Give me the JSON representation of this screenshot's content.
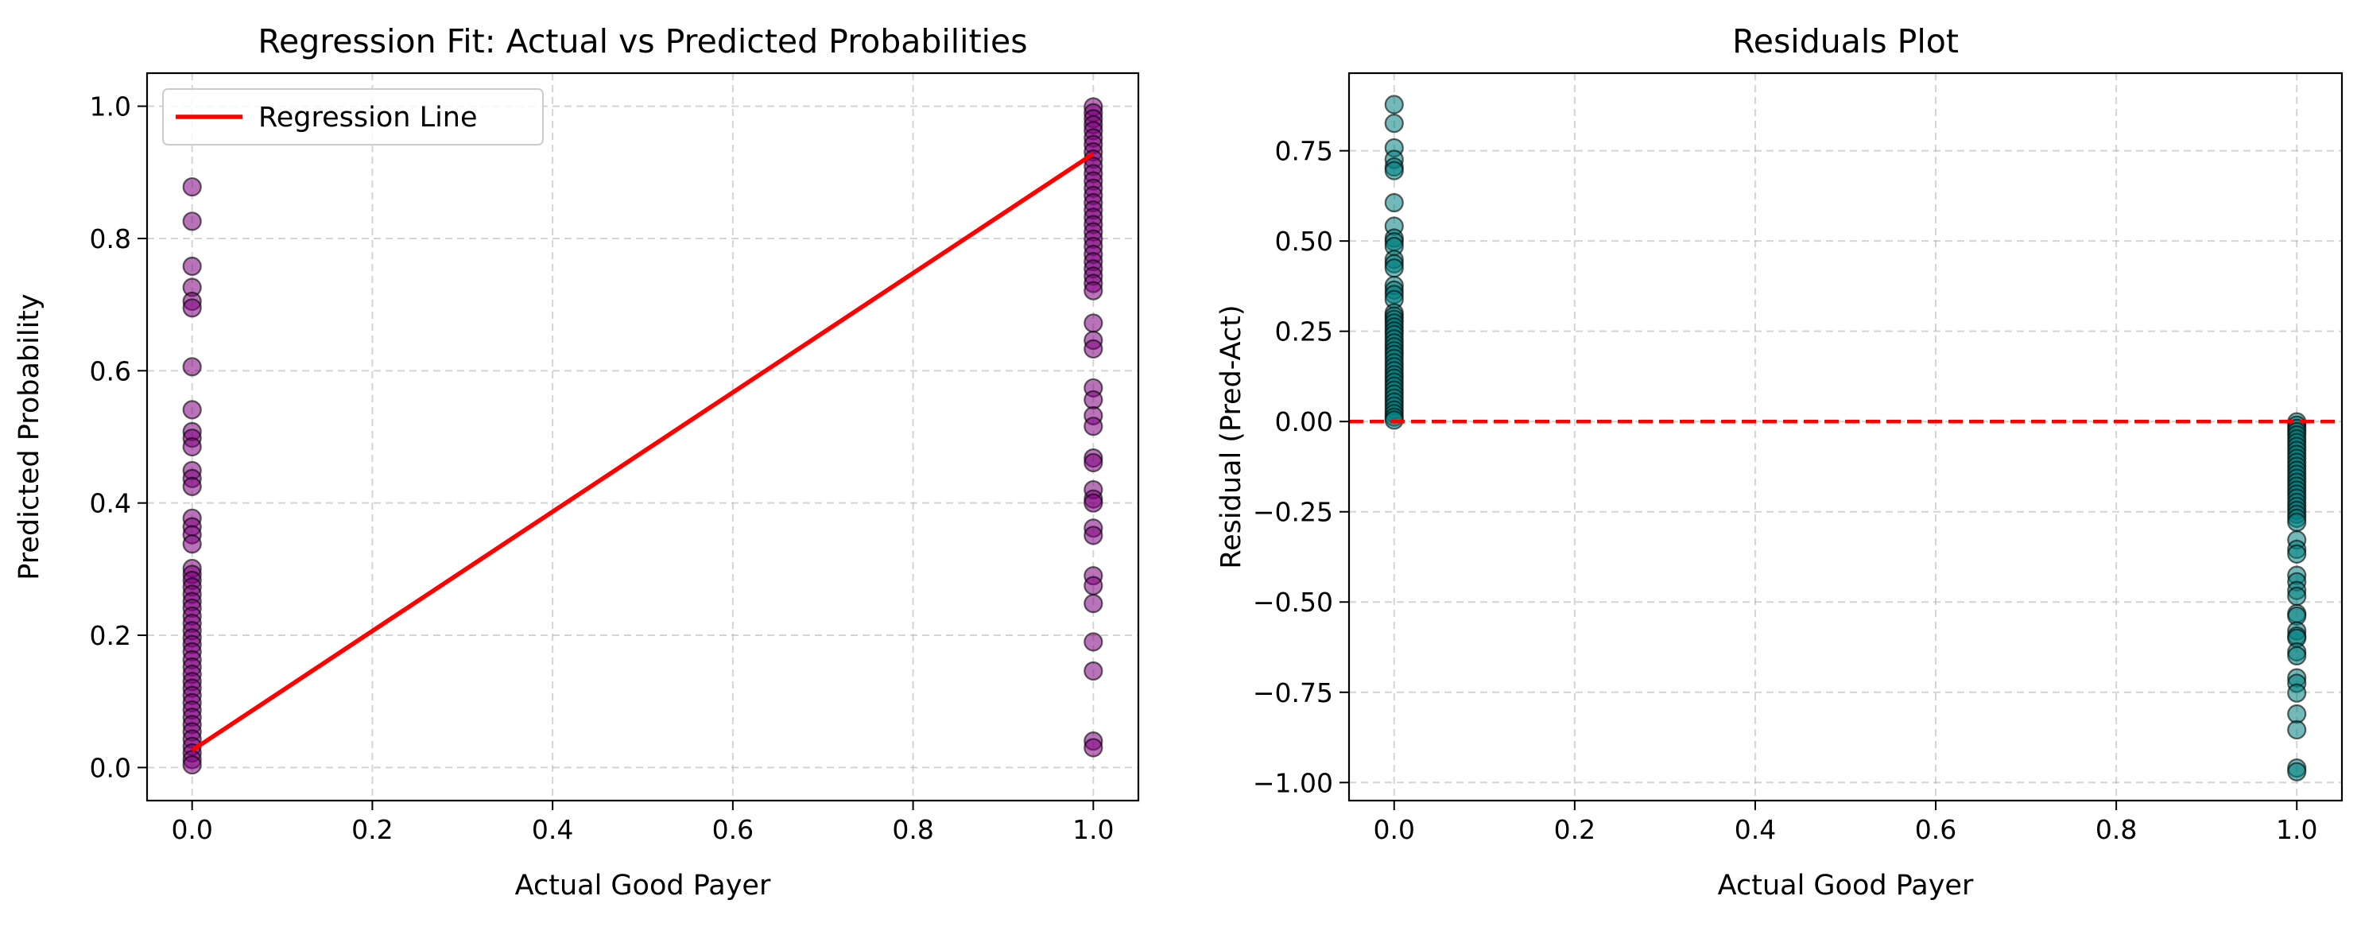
{
  "chart_data": [
    {
      "type": "scatter",
      "title": "Regression Fit: Actual vs Predicted Probabilities",
      "xlabel": "Actual Good Payer",
      "ylabel": "Predicted Probability",
      "xlim": [
        -0.05,
        1.05
      ],
      "ylim": [
        -0.05,
        1.05
      ],
      "xticks": [
        0.0,
        0.2,
        0.4,
        0.6,
        0.8,
        1.0
      ],
      "yticks": [
        0.0,
        0.2,
        0.4,
        0.6,
        0.8,
        1.0
      ],
      "xtick_labels": [
        "0.0",
        "0.2",
        "0.4",
        "0.6",
        "0.8",
        "1.0"
      ],
      "ytick_labels": [
        "0.0",
        "0.2",
        "0.4",
        "0.6",
        "0.8",
        "1.0"
      ],
      "grid": true,
      "legend": {
        "placement": "top-left",
        "entries": [
          "Regression Line"
        ]
      },
      "series": [
        {
          "kind": "scatter",
          "color": "#800080",
          "points": [
            [
              0,
              0.878
            ],
            [
              0,
              0.826
            ],
            [
              0,
              0.758
            ],
            [
              0,
              0.726
            ],
            [
              0,
              0.705
            ],
            [
              0,
              0.695
            ],
            [
              0,
              0.606
            ],
            [
              0,
              0.541
            ],
            [
              0,
              0.508
            ],
            [
              0,
              0.498
            ],
            [
              0,
              0.485
            ],
            [
              0,
              0.449
            ],
            [
              0,
              0.437
            ],
            [
              0,
              0.425
            ],
            [
              0,
              0.377
            ],
            [
              0,
              0.364
            ],
            [
              0,
              0.352
            ],
            [
              0,
              0.338
            ],
            [
              0,
              0.301
            ],
            [
              0,
              0.292
            ],
            [
              0,
              0.283
            ],
            [
              0,
              0.273
            ],
            [
              0,
              0.262
            ],
            [
              0,
              0.251
            ],
            [
              0,
              0.241
            ],
            [
              0,
              0.229
            ],
            [
              0,
              0.218
            ],
            [
              0,
              0.207
            ],
            [
              0,
              0.196
            ],
            [
              0,
              0.186
            ],
            [
              0,
              0.175
            ],
            [
              0,
              0.163
            ],
            [
              0,
              0.152
            ],
            [
              0,
              0.141
            ],
            [
              0,
              0.13
            ],
            [
              0,
              0.12
            ],
            [
              0,
              0.109
            ],
            [
              0,
              0.098
            ],
            [
              0,
              0.087
            ],
            [
              0,
              0.076
            ],
            [
              0,
              0.065
            ],
            [
              0,
              0.054
            ],
            [
              0,
              0.043
            ],
            [
              0,
              0.032
            ],
            [
              0,
              0.022
            ],
            [
              0,
              0.012
            ],
            [
              0,
              0.004
            ],
            [
              1,
              0.999
            ],
            [
              1,
              0.99
            ],
            [
              1,
              0.981
            ],
            [
              1,
              0.972
            ],
            [
              1,
              0.963
            ],
            [
              1,
              0.952
            ],
            [
              1,
              0.942
            ],
            [
              1,
              0.931
            ],
            [
              1,
              0.92
            ],
            [
              1,
              0.909
            ],
            [
              1,
              0.898
            ],
            [
              1,
              0.887
            ],
            [
              1,
              0.876
            ],
            [
              1,
              0.865
            ],
            [
              1,
              0.854
            ],
            [
              1,
              0.843
            ],
            [
              1,
              0.832
            ],
            [
              1,
              0.821
            ],
            [
              1,
              0.81
            ],
            [
              1,
              0.799
            ],
            [
              1,
              0.788
            ],
            [
              1,
              0.776
            ],
            [
              1,
              0.765
            ],
            [
              1,
              0.754
            ],
            [
              1,
              0.743
            ],
            [
              1,
              0.732
            ],
            [
              1,
              0.721
            ],
            [
              1,
              0.672
            ],
            [
              1,
              0.646
            ],
            [
              1,
              0.633
            ],
            [
              1,
              0.574
            ],
            [
              1,
              0.556
            ],
            [
              1,
              0.532
            ],
            [
              1,
              0.516
            ],
            [
              1,
              0.468
            ],
            [
              1,
              0.461
            ],
            [
              1,
              0.42
            ],
            [
              1,
              0.406
            ],
            [
              1,
              0.4
            ],
            [
              1,
              0.362
            ],
            [
              1,
              0.351
            ],
            [
              1,
              0.29
            ],
            [
              1,
              0.275
            ],
            [
              1,
              0.248
            ],
            [
              1,
              0.19
            ],
            [
              1,
              0.146
            ],
            [
              1,
              0.04
            ],
            [
              1,
              0.03
            ]
          ]
        },
        {
          "kind": "line",
          "name": "Regression Line",
          "color": "#ff0000",
          "points": [
            [
              0,
              0.026
            ],
            [
              1,
              0.928
            ]
          ]
        }
      ]
    },
    {
      "type": "scatter",
      "title": "Residuals Plot",
      "xlabel": "Actual Good Payer",
      "ylabel": "Residual (Pred-Act)",
      "xlim": [
        -0.05,
        1.05
      ],
      "ylim": [
        -1.05,
        0.965
      ],
      "xticks": [
        0.0,
        0.2,
        0.4,
        0.6,
        0.8,
        1.0
      ],
      "yticks": [
        0.75,
        0.5,
        0.25,
        0.0,
        -0.25,
        -0.5,
        -0.75,
        -1.0
      ],
      "xtick_labels": [
        "0.0",
        "0.2",
        "0.4",
        "0.6",
        "0.8",
        "1.0"
      ],
      "ytick_labels": [
        "0.75",
        "0.50",
        "0.25",
        "0.00",
        "−0.25",
        "−0.50",
        "−0.75",
        "−1.00"
      ],
      "grid": true,
      "series": [
        {
          "kind": "scatter",
          "color": "#008080",
          "points": [
            [
              0,
              0.878
            ],
            [
              0,
              0.826
            ],
            [
              0,
              0.758
            ],
            [
              0,
              0.726
            ],
            [
              0,
              0.705
            ],
            [
              0,
              0.695
            ],
            [
              0,
              0.606
            ],
            [
              0,
              0.541
            ],
            [
              0,
              0.508
            ],
            [
              0,
              0.498
            ],
            [
              0,
              0.485
            ],
            [
              0,
              0.449
            ],
            [
              0,
              0.437
            ],
            [
              0,
              0.425
            ],
            [
              0,
              0.377
            ],
            [
              0,
              0.364
            ],
            [
              0,
              0.352
            ],
            [
              0,
              0.338
            ],
            [
              0,
              0.301
            ],
            [
              0,
              0.292
            ],
            [
              0,
              0.283
            ],
            [
              0,
              0.273
            ],
            [
              0,
              0.262
            ],
            [
              0,
              0.251
            ],
            [
              0,
              0.241
            ],
            [
              0,
              0.229
            ],
            [
              0,
              0.218
            ],
            [
              0,
              0.207
            ],
            [
              0,
              0.196
            ],
            [
              0,
              0.186
            ],
            [
              0,
              0.175
            ],
            [
              0,
              0.163
            ],
            [
              0,
              0.152
            ],
            [
              0,
              0.141
            ],
            [
              0,
              0.13
            ],
            [
              0,
              0.12
            ],
            [
              0,
              0.109
            ],
            [
              0,
              0.098
            ],
            [
              0,
              0.087
            ],
            [
              0,
              0.076
            ],
            [
              0,
              0.065
            ],
            [
              0,
              0.054
            ],
            [
              0,
              0.043
            ],
            [
              0,
              0.032
            ],
            [
              0,
              0.022
            ],
            [
              0,
              0.012
            ],
            [
              0,
              0.004
            ],
            [
              1,
              -0.001
            ],
            [
              1,
              -0.01
            ],
            [
              1,
              -0.019
            ],
            [
              1,
              -0.028
            ],
            [
              1,
              -0.037
            ],
            [
              1,
              -0.048
            ],
            [
              1,
              -0.058
            ],
            [
              1,
              -0.069
            ],
            [
              1,
              -0.08
            ],
            [
              1,
              -0.091
            ],
            [
              1,
              -0.102
            ],
            [
              1,
              -0.113
            ],
            [
              1,
              -0.124
            ],
            [
              1,
              -0.135
            ],
            [
              1,
              -0.146
            ],
            [
              1,
              -0.157
            ],
            [
              1,
              -0.168
            ],
            [
              1,
              -0.179
            ],
            [
              1,
              -0.19
            ],
            [
              1,
              -0.201
            ],
            [
              1,
              -0.212
            ],
            [
              1,
              -0.224
            ],
            [
              1,
              -0.235
            ],
            [
              1,
              -0.246
            ],
            [
              1,
              -0.257
            ],
            [
              1,
              -0.268
            ],
            [
              1,
              -0.279
            ],
            [
              1,
              -0.328
            ],
            [
              1,
              -0.354
            ],
            [
              1,
              -0.367
            ],
            [
              1,
              -0.426
            ],
            [
              1,
              -0.444
            ],
            [
              1,
              -0.468
            ],
            [
              1,
              -0.484
            ],
            [
              1,
              -0.532
            ],
            [
              1,
              -0.539
            ],
            [
              1,
              -0.58
            ],
            [
              1,
              -0.594
            ],
            [
              1,
              -0.6
            ],
            [
              1,
              -0.638
            ],
            [
              1,
              -0.649
            ],
            [
              1,
              -0.71
            ],
            [
              1,
              -0.725
            ],
            [
              1,
              -0.752
            ],
            [
              1,
              -0.81
            ],
            [
              1,
              -0.854
            ],
            [
              1,
              -0.96
            ],
            [
              1,
              -0.97
            ]
          ]
        },
        {
          "kind": "hline",
          "y": 0,
          "color": "#ff0000",
          "dash": "dashed"
        }
      ]
    }
  ]
}
